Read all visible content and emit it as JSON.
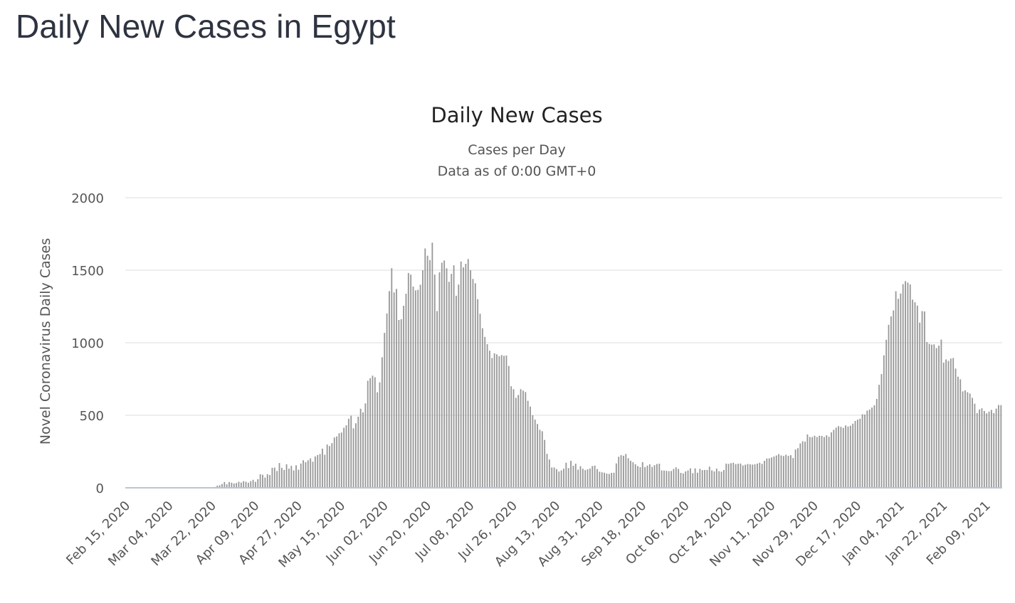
{
  "page": {
    "title": "Daily New Cases in Egypt"
  },
  "chart_data": {
    "type": "bar",
    "title": "Daily New Cases",
    "subtitle_lines": [
      "Cases per Day",
      "Data as of 0:00 GMT+0"
    ],
    "ylabel": "Novel Coronavirus Daily Cases",
    "xlabel": "",
    "ylim": [
      0,
      2000
    ],
    "yticks": [
      0,
      500,
      1000,
      1500,
      2000
    ],
    "x_tick_labels": [
      "Feb 15, 2020",
      "Mar 04, 2020",
      "Mar 22, 2020",
      "Apr 09, 2020",
      "Apr 27, 2020",
      "May 15, 2020",
      "Jun 02, 2020",
      "Jun 20, 2020",
      "Jul 08, 2020",
      "Jul 26, 2020",
      "Aug 13, 2020",
      "Aug 31, 2020",
      "Sep 18, 2020",
      "Oct 06, 2020",
      "Oct 24, 2020",
      "Nov 11, 2020",
      "Nov 29, 2020",
      "Dec 17, 2020",
      "Jan 04, 2021",
      "Jan 22, 2021",
      "Feb 09, 2021"
    ],
    "first_date": "Feb 15, 2020",
    "last_date": "Feb 09, 2021",
    "grid": true,
    "legend": "none",
    "colors": {
      "bar": "#999999",
      "grid": "#dcdcdc",
      "baseline": "#b8c6d6"
    },
    "values": [
      0,
      0,
      0,
      0,
      0,
      0,
      0,
      0,
      0,
      0,
      0,
      0,
      0,
      0,
      0,
      0,
      0,
      0,
      0,
      0,
      0,
      0,
      0,
      0,
      0,
      3,
      0,
      0,
      0,
      0,
      0,
      0,
      0,
      0,
      2,
      0,
      3,
      6,
      15,
      18,
      26,
      40,
      24,
      40,
      35,
      30,
      33,
      42,
      36,
      46,
      42,
      35,
      46,
      55,
      41,
      60,
      93,
      90,
      71,
      94,
      88,
      138,
      139,
      116,
      171,
      138,
      123,
      162,
      132,
      151,
      120,
      155,
      125,
      167,
      190,
      177,
      190,
      203,
      180,
      216,
      226,
      233,
      270,
      228,
      298,
      288,
      308,
      347,
      354,
      376,
      381,
      414,
      431,
      476,
      497,
      410,
      445,
      490,
      545,
      520,
      582,
      738,
      755,
      773,
      762,
      658,
      727,
      900,
      1068,
      1202,
      1356,
      1514,
      1347,
      1371,
      1157,
      1162,
      1255,
      1338,
      1481,
      1470,
      1387,
      1361,
      1365,
      1400,
      1500,
      1650,
      1600,
      1570,
      1690,
      1470,
      1218,
      1485,
      1552,
      1567,
      1513,
      1420,
      1475,
      1534,
      1324,
      1401,
      1560,
      1520,
      1544,
      1577,
      1500,
      1440,
      1410,
      1300,
      1200,
      1100,
      1040,
      990,
      945,
      895,
      927,
      920,
      907,
      915,
      910,
      912,
      840,
      700,
      680,
      620,
      640,
      680,
      670,
      660,
      600,
      560,
      500,
      470,
      440,
      400,
      390,
      330,
      234,
      195,
      140,
      140,
      129,
      112,
      120,
      132,
      173,
      136,
      186,
      152,
      166,
      125,
      149,
      131,
      122,
      128,
      133,
      150,
      153,
      129,
      111,
      107,
      104,
      98,
      96,
      103,
      104,
      168,
      214,
      225,
      221,
      233,
      204,
      186,
      176,
      163,
      150,
      143,
      177,
      143,
      153,
      162,
      144,
      156,
      164,
      166,
      120,
      119,
      117,
      115,
      116,
      130,
      141,
      130,
      103,
      99,
      113,
      120,
      134,
      101,
      134,
      104,
      131,
      122,
      123,
      123,
      146,
      120,
      113,
      132,
      115,
      111,
      123,
      167,
      165,
      170,
      173,
      163,
      166,
      167,
      154,
      159,
      164,
      162,
      160,
      162,
      167,
      173,
      165,
      186,
      202,
      203,
      209,
      216,
      223,
      232,
      223,
      219,
      228,
      220,
      225,
      205,
      264,
      273,
      306,
      321,
      318,
      368,
      350,
      350,
      359,
      350,
      359,
      358,
      350,
      362,
      352,
      382,
      400,
      415,
      425,
      420,
      413,
      430,
      422,
      428,
      442,
      461,
      470,
      476,
      507,
      505,
      532,
      539,
      553,
      569,
      613,
      710,
      784,
      913,
      1021,
      1124,
      1182,
      1223,
      1355,
      1303,
      1339,
      1404,
      1425,
      1415,
      1402,
      1297,
      1279,
      1256,
      1139,
      1218,
      1216,
      1005,
      992,
      987,
      989,
      963,
      980,
      1022,
      863,
      885,
      875,
      891,
      895,
      822,
      766,
      748,
      665,
      672,
      659,
      650,
      620,
      580,
      515,
      540,
      548,
      530,
      513,
      525,
      537,
      515,
      546,
      571,
      570
    ]
  }
}
